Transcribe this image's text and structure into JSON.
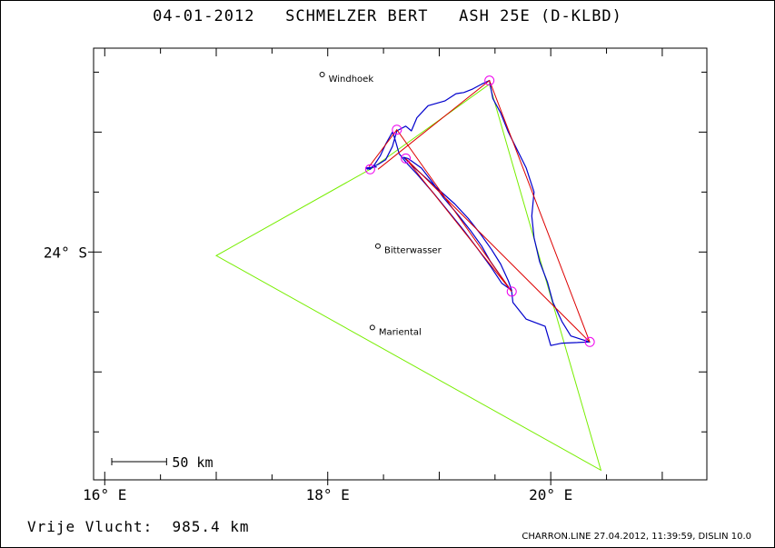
{
  "title": "04-01-2012   SCHMELZER BERT   ASH 25E (D-KLBD)",
  "footer": {
    "distance_label": "Vrije Vlucht:  985.4 km",
    "credit": "CHARRON.LINE 27.04.2012, 11:39:59, DISLIN 10.0"
  },
  "colors": {
    "track": "#0000cc",
    "declared_task": "#77ee00",
    "flown_legs": "#dd0000",
    "turnpoint_markers": "#ee00ee",
    "map_frame": "#000000"
  },
  "chart_data": {
    "type": "map",
    "xlabel": "",
    "ylabel": "",
    "xlim": [
      15.9,
      21.4
    ],
    "ylim": [
      -25.9,
      -22.3
    ],
    "x_ticks": [
      {
        "value": 16,
        "label": "16° E"
      },
      {
        "value": 18,
        "label": "18° E"
      },
      {
        "value": 20,
        "label": "20° E"
      }
    ],
    "y_ticks": [
      {
        "value": -24,
        "label": "24° S"
      }
    ],
    "scale_bar": {
      "label": "50 km",
      "length_km": 50
    },
    "places": [
      {
        "name": "Windhoek",
        "lon": 17.95,
        "lat": -22.52
      },
      {
        "name": "Bitterwasser",
        "lon": 18.45,
        "lat": -23.95
      },
      {
        "name": "Mariental",
        "lon": 18.4,
        "lat": -24.63
      }
    ],
    "declared_task": [
      [
        18.4,
        -23.3
      ],
      [
        17.0,
        -24.03
      ],
      [
        20.45,
        -25.82
      ],
      [
        19.45,
        -22.6
      ],
      [
        18.4,
        -23.3
      ]
    ],
    "flown_legs": [
      [
        18.45,
        -23.31
      ],
      [
        19.45,
        -22.57
      ],
      [
        20.35,
        -24.75
      ],
      [
        18.7,
        -23.22
      ],
      [
        19.65,
        -24.33
      ],
      [
        18.62,
        -22.98
      ],
      [
        18.37,
        -23.29
      ]
    ],
    "turnpoints": [
      [
        19.45,
        -22.57
      ],
      [
        18.62,
        -22.98
      ],
      [
        18.7,
        -23.22
      ],
      [
        18.38,
        -23.31
      ],
      [
        19.65,
        -24.33
      ],
      [
        20.35,
        -24.75
      ]
    ],
    "track": [
      [
        18.35,
        -23.31
      ],
      [
        18.45,
        -23.27
      ],
      [
        18.52,
        -23.23
      ],
      [
        18.58,
        -23.12
      ],
      [
        18.62,
        -22.99
      ],
      [
        18.66,
        -22.97
      ],
      [
        18.7,
        -22.95
      ],
      [
        18.75,
        -22.99
      ],
      [
        18.8,
        -22.88
      ],
      [
        18.9,
        -22.78
      ],
      [
        19.05,
        -22.74
      ],
      [
        19.15,
        -22.68
      ],
      [
        19.22,
        -22.67
      ],
      [
        19.3,
        -22.64
      ],
      [
        19.38,
        -22.6
      ],
      [
        19.45,
        -22.57
      ],
      [
        19.48,
        -22.72
      ],
      [
        19.55,
        -22.84
      ],
      [
        19.62,
        -23.0
      ],
      [
        19.7,
        -23.15
      ],
      [
        19.78,
        -23.3
      ],
      [
        19.85,
        -23.5
      ],
      [
        19.83,
        -23.7
      ],
      [
        19.85,
        -23.88
      ],
      [
        19.9,
        -24.08
      ],
      [
        19.97,
        -24.25
      ],
      [
        20.02,
        -24.42
      ],
      [
        20.1,
        -24.58
      ],
      [
        20.18,
        -24.7
      ],
      [
        20.35,
        -24.75
      ],
      [
        20.1,
        -24.76
      ],
      [
        20.0,
        -24.78
      ],
      [
        19.95,
        -24.62
      ],
      [
        19.78,
        -24.56
      ],
      [
        19.66,
        -24.42
      ],
      [
        19.65,
        -24.33
      ],
      [
        19.55,
        -24.2
      ],
      [
        19.46,
        -24.08
      ],
      [
        19.38,
        -23.95
      ],
      [
        19.28,
        -23.82
      ],
      [
        19.16,
        -23.68
      ],
      [
        19.04,
        -23.55
      ],
      [
        18.94,
        -23.42
      ],
      [
        18.84,
        -23.3
      ],
      [
        18.72,
        -23.22
      ],
      [
        18.68,
        -23.21
      ],
      [
        18.78,
        -23.3
      ],
      [
        18.9,
        -23.4
      ],
      [
        19.02,
        -23.5
      ],
      [
        19.14,
        -23.6
      ],
      [
        19.26,
        -23.72
      ],
      [
        19.37,
        -23.85
      ],
      [
        19.47,
        -23.98
      ],
      [
        19.55,
        -24.1
      ],
      [
        19.62,
        -24.24
      ],
      [
        19.65,
        -24.32
      ],
      [
        19.56,
        -24.26
      ],
      [
        19.46,
        -24.12
      ],
      [
        19.35,
        -23.98
      ],
      [
        19.22,
        -23.82
      ],
      [
        19.08,
        -23.66
      ],
      [
        18.94,
        -23.5
      ],
      [
        18.8,
        -23.35
      ],
      [
        18.7,
        -23.25
      ],
      [
        18.64,
        -23.18
      ],
      [
        18.6,
        -23.05
      ],
      [
        18.58,
        -23.0
      ],
      [
        18.52,
        -23.1
      ],
      [
        18.47,
        -23.2
      ],
      [
        18.42,
        -23.27
      ],
      [
        18.38,
        -23.31
      ],
      [
        18.34,
        -23.3
      ],
      [
        18.44,
        -23.29
      ]
    ]
  }
}
